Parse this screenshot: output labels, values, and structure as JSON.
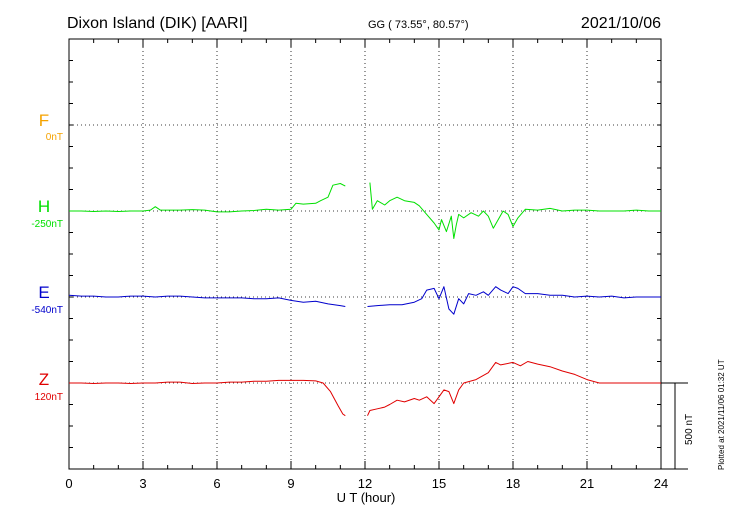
{
  "header": {
    "station": "Dixon Island (DIK)  [AARI]",
    "coords": "GG ( 73.55°,  80.57°)",
    "date": "2021/10/06"
  },
  "footer": {
    "xlabel": "U T (hour)",
    "plotted": "Plotted at 2021/11/06 01:32 UT",
    "scale_label": "500 nT"
  },
  "colors": {
    "F": "#f5a300",
    "H": "#00e000",
    "E": "#0000cc",
    "Z": "#e00000",
    "grid": "#000000"
  },
  "chart_data": {
    "type": "line",
    "title": "Dixon Island (DIK)  [AARI]",
    "xlabel": "U T (hour)",
    "xlim": [
      0,
      24
    ],
    "xticks": [
      "0",
      "3",
      "6",
      "9",
      "12",
      "15",
      "18",
      "21",
      "24"
    ],
    "scale_bar_nT": 500,
    "series": [
      {
        "name": "F",
        "baseline_label": "0nT",
        "baseline_nT": 0,
        "color": "#f5a300",
        "points": []
      },
      {
        "name": "H",
        "baseline_label": "-250nT",
        "baseline_nT": -250,
        "color": "#00e000",
        "segments": [
          [
            [
              0,
              0
            ],
            [
              0.5,
              0
            ],
            [
              1,
              -3
            ],
            [
              1.5,
              0
            ],
            [
              2,
              -3
            ],
            [
              2.5,
              0
            ],
            [
              3,
              0
            ],
            [
              3.3,
              5
            ],
            [
              3.5,
              25
            ],
            [
              3.7,
              5
            ],
            [
              4,
              5
            ],
            [
              4.5,
              5
            ],
            [
              5,
              8
            ],
            [
              5.5,
              5
            ],
            [
              6,
              -5
            ],
            [
              6.5,
              -5
            ],
            [
              7,
              0
            ],
            [
              7.5,
              3
            ],
            [
              8,
              10
            ],
            [
              8.5,
              5
            ],
            [
              9,
              10
            ],
            [
              9.2,
              45
            ],
            [
              9.5,
              40
            ],
            [
              10,
              45
            ],
            [
              10.2,
              60
            ],
            [
              10.5,
              80
            ],
            [
              10.7,
              150
            ],
            [
              11,
              160
            ],
            [
              11.2,
              145
            ]
          ],
          [
            [
              12.2,
              165
            ],
            [
              12.3,
              10
            ],
            [
              12.5,
              60
            ],
            [
              12.8,
              35
            ],
            [
              13,
              60
            ],
            [
              13.3,
              80
            ],
            [
              13.6,
              60
            ],
            [
              14,
              50
            ],
            [
              14.2,
              30
            ],
            [
              14.5,
              -20
            ],
            [
              14.8,
              -70
            ],
            [
              15,
              -110
            ],
            [
              15.1,
              -50
            ],
            [
              15.3,
              -120
            ],
            [
              15.5,
              -30
            ],
            [
              15.6,
              -160
            ],
            [
              15.7,
              -80
            ],
            [
              15.8,
              -20
            ],
            [
              16,
              -40
            ],
            [
              16.3,
              -10
            ],
            [
              16.6,
              -30
            ],
            [
              16.8,
              0
            ],
            [
              17,
              -30
            ],
            [
              17.2,
              -100
            ],
            [
              17.4,
              -50
            ],
            [
              17.6,
              0
            ],
            [
              17.8,
              -20
            ],
            [
              18,
              -90
            ],
            [
              18.2,
              -40
            ],
            [
              18.5,
              10
            ],
            [
              19,
              5
            ],
            [
              19.5,
              15
            ],
            [
              20,
              0
            ],
            [
              20.5,
              5
            ],
            [
              21,
              5
            ],
            [
              21.5,
              0
            ],
            [
              22,
              0
            ],
            [
              22.5,
              0
            ],
            [
              23,
              5
            ],
            [
              23.5,
              0
            ],
            [
              24,
              0
            ]
          ]
        ]
      },
      {
        "name": "E",
        "baseline_label": "-540nT",
        "baseline_nT": -540,
        "color": "#0000cc",
        "segments": [
          [
            [
              0,
              10
            ],
            [
              0.5,
              5
            ],
            [
              1,
              5
            ],
            [
              1.5,
              0
            ],
            [
              2,
              0
            ],
            [
              2.5,
              5
            ],
            [
              3,
              5
            ],
            [
              3.5,
              0
            ],
            [
              4,
              5
            ],
            [
              4.5,
              5
            ],
            [
              5,
              0
            ],
            [
              5.5,
              -5
            ],
            [
              6,
              -5
            ],
            [
              6.5,
              -5
            ],
            [
              7,
              -5
            ],
            [
              7.5,
              -10
            ],
            [
              8,
              -10
            ],
            [
              8.5,
              -5
            ],
            [
              9,
              -20
            ],
            [
              9.5,
              -30
            ],
            [
              10,
              -25
            ],
            [
              10.5,
              -40
            ],
            [
              11,
              -50
            ],
            [
              11.2,
              -55
            ]
          ],
          [
            [
              12.1,
              -55
            ],
            [
              12.5,
              -50
            ],
            [
              13,
              -45
            ],
            [
              13.5,
              -45
            ],
            [
              14,
              -30
            ],
            [
              14.3,
              -10
            ],
            [
              14.5,
              40
            ],
            [
              14.8,
              50
            ],
            [
              15,
              -10
            ],
            [
              15.2,
              60
            ],
            [
              15.4,
              -70
            ],
            [
              15.6,
              -100
            ],
            [
              15.8,
              -10
            ],
            [
              16,
              -40
            ],
            [
              16.2,
              20
            ],
            [
              16.5,
              10
            ],
            [
              16.8,
              30
            ],
            [
              17,
              10
            ],
            [
              17.3,
              60
            ],
            [
              17.5,
              40
            ],
            [
              17.8,
              20
            ],
            [
              18,
              60
            ],
            [
              18.2,
              50
            ],
            [
              18.5,
              20
            ],
            [
              19,
              20
            ],
            [
              19.5,
              10
            ],
            [
              20,
              10
            ],
            [
              20.5,
              0
            ],
            [
              21,
              5
            ],
            [
              21.5,
              0
            ],
            [
              22,
              5
            ],
            [
              22.5,
              -5
            ],
            [
              23,
              0
            ],
            [
              23.5,
              0
            ],
            [
              24,
              0
            ]
          ]
        ]
      },
      {
        "name": "Z",
        "baseline_label": "120nT",
        "baseline_nT": 120,
        "color": "#e00000",
        "segments": [
          [
            [
              0,
              0
            ],
            [
              0.5,
              0
            ],
            [
              1,
              -3
            ],
            [
              1.5,
              0
            ],
            [
              2,
              0
            ],
            [
              2.5,
              -3
            ],
            [
              3,
              0
            ],
            [
              3.5,
              0
            ],
            [
              4,
              5
            ],
            [
              4.5,
              5
            ],
            [
              5,
              -3
            ],
            [
              5.5,
              0
            ],
            [
              6,
              0
            ],
            [
              6.5,
              5
            ],
            [
              7,
              5
            ],
            [
              7.5,
              10
            ],
            [
              8,
              10
            ],
            [
              8.5,
              15
            ],
            [
              9,
              15
            ],
            [
              9.5,
              15
            ],
            [
              10,
              12
            ],
            [
              10.3,
              0
            ],
            [
              10.6,
              -50
            ],
            [
              10.9,
              -130
            ],
            [
              11.1,
              -180
            ],
            [
              11.2,
              -190
            ]
          ],
          [
            [
              12.1,
              -190
            ],
            [
              12.2,
              -160
            ],
            [
              12.5,
              -150
            ],
            [
              12.8,
              -140
            ],
            [
              13,
              -125
            ],
            [
              13.3,
              -100
            ],
            [
              13.6,
              -110
            ],
            [
              14,
              -90
            ],
            [
              14.2,
              -100
            ],
            [
              14.5,
              -80
            ],
            [
              14.8,
              -120
            ],
            [
              15,
              -80
            ],
            [
              15.2,
              -40
            ],
            [
              15.4,
              -50
            ],
            [
              15.6,
              -120
            ],
            [
              15.8,
              -40
            ],
            [
              16,
              0
            ],
            [
              16.5,
              20
            ],
            [
              17,
              60
            ],
            [
              17.3,
              120
            ],
            [
              17.5,
              105
            ],
            [
              18,
              120
            ],
            [
              18.3,
              100
            ],
            [
              18.6,
              125
            ],
            [
              19,
              110
            ],
            [
              19.5,
              95
            ],
            [
              20,
              70
            ],
            [
              20.5,
              50
            ],
            [
              21,
              20
            ],
            [
              21.5,
              0
            ],
            [
              22,
              0
            ],
            [
              22.5,
              0
            ],
            [
              23,
              0
            ],
            [
              23.5,
              0
            ],
            [
              24,
              0
            ]
          ]
        ]
      }
    ]
  }
}
